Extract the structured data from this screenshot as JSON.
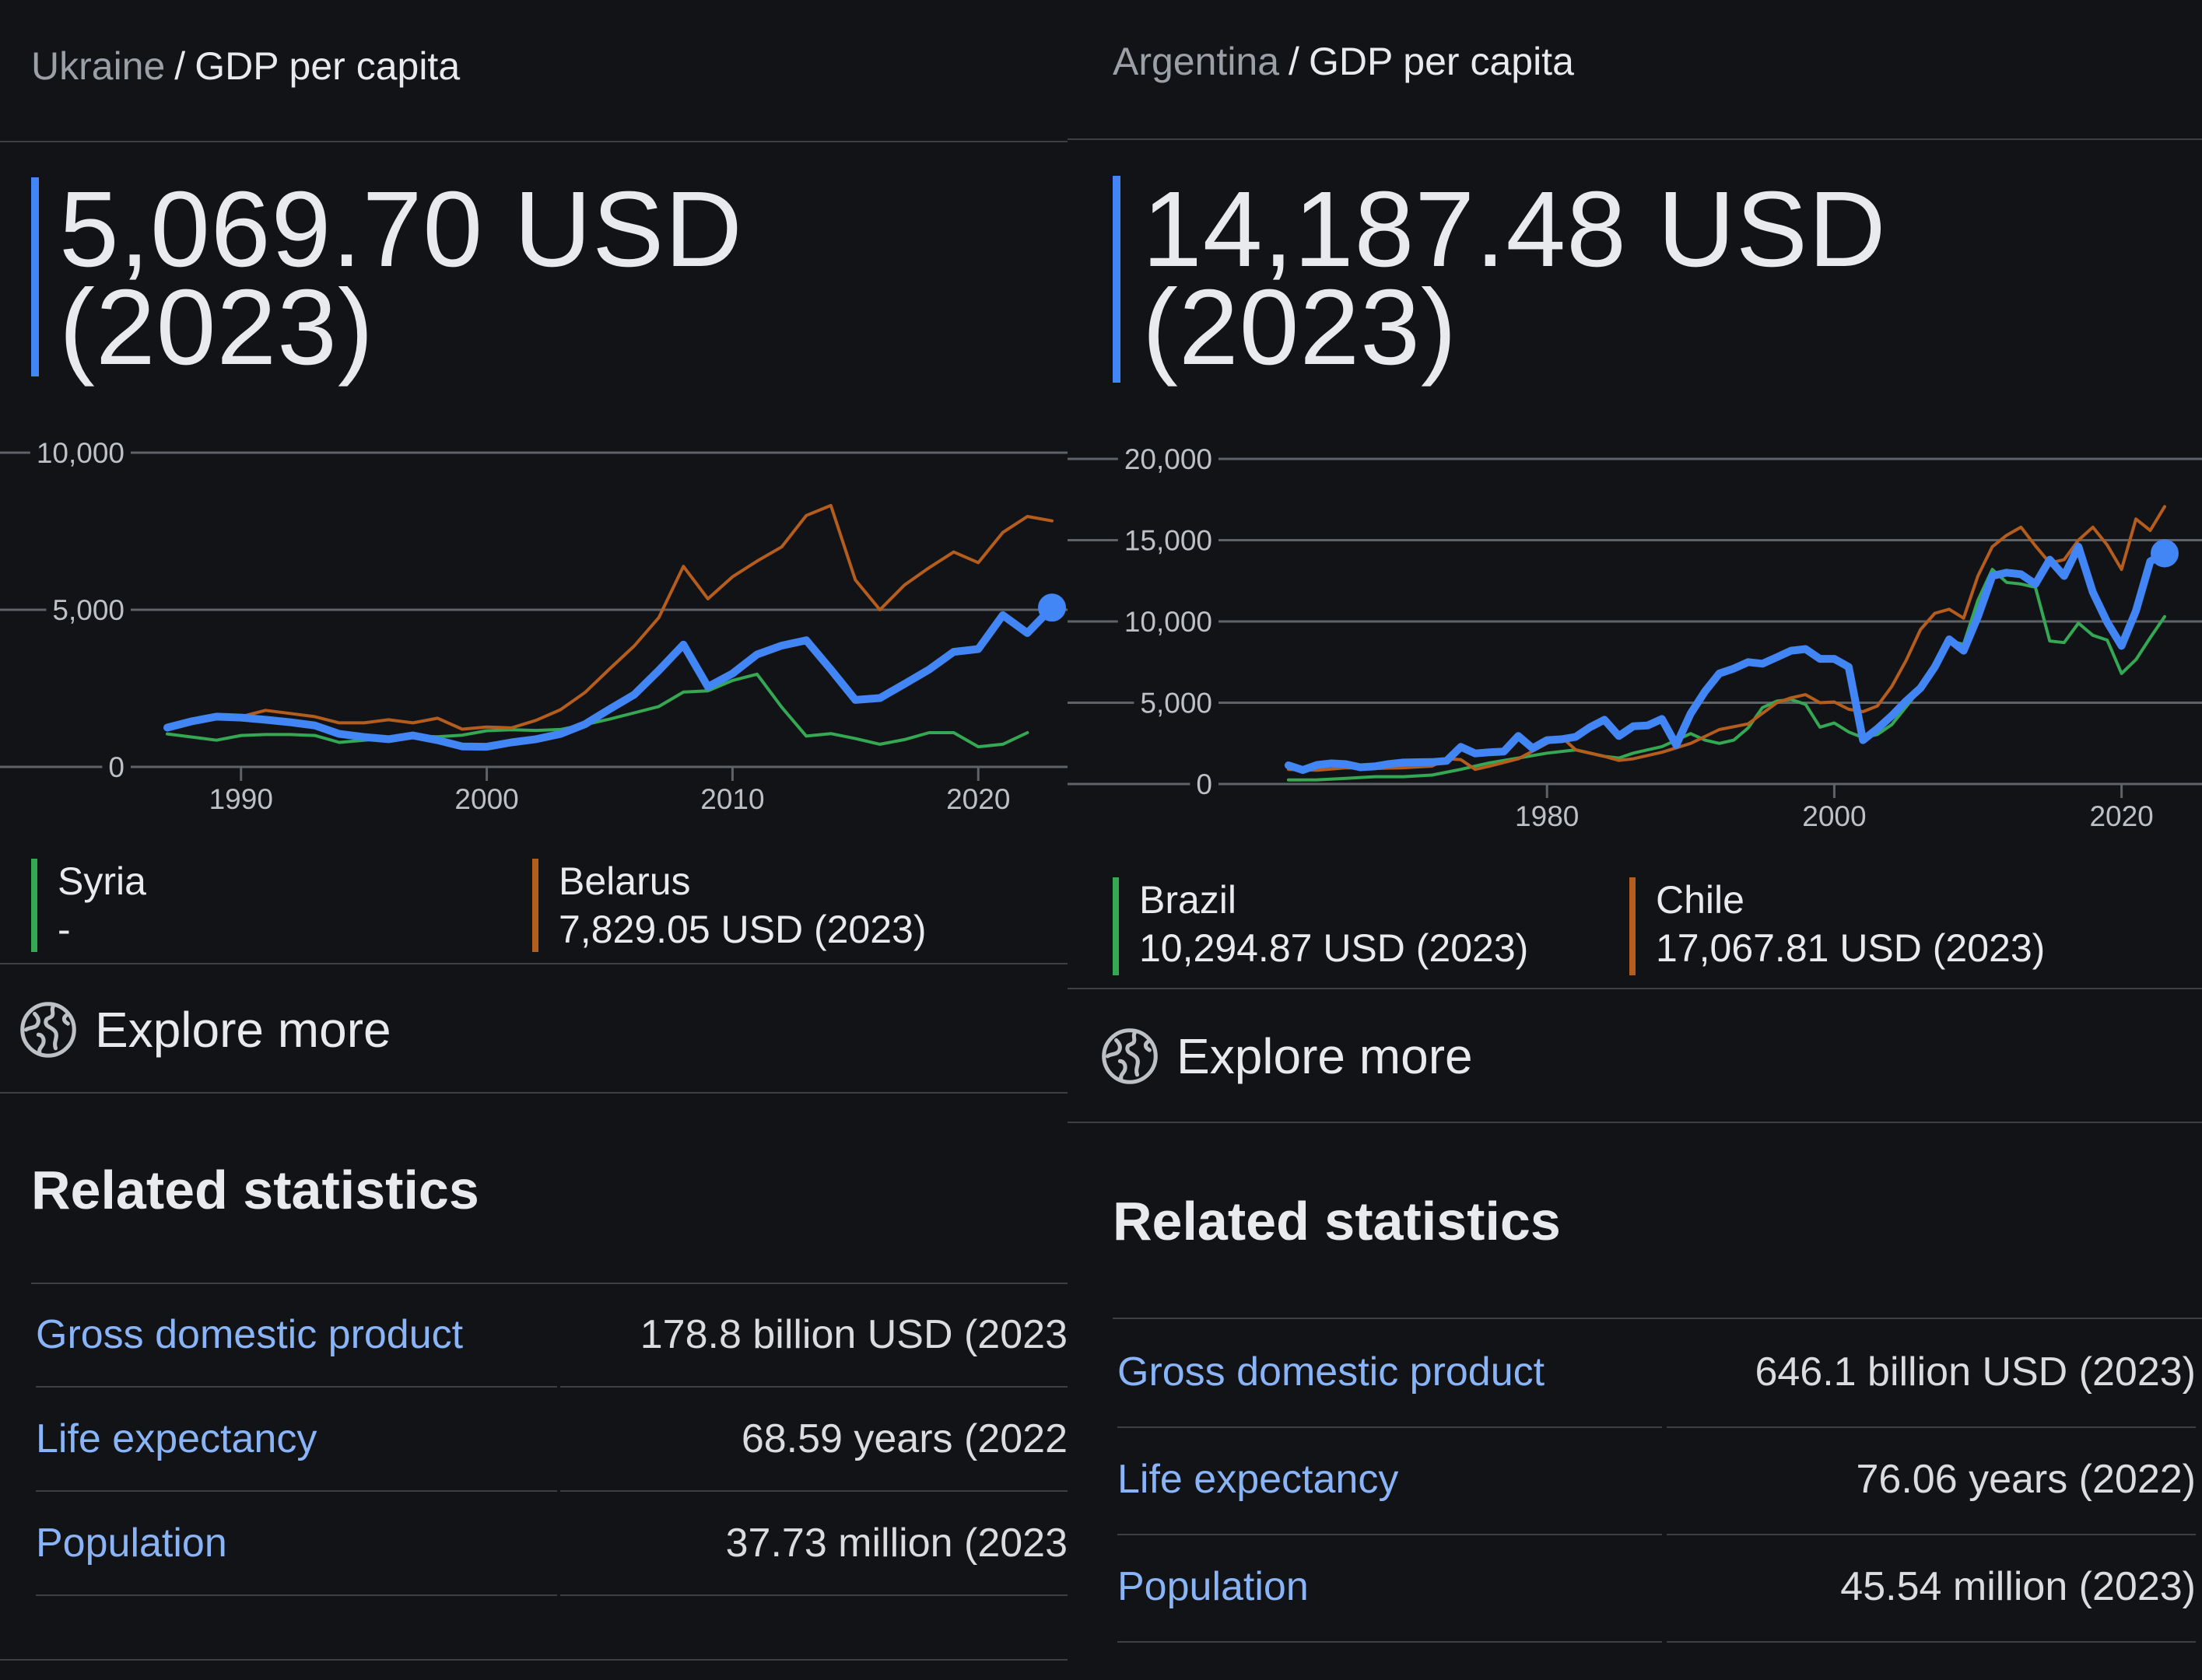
{
  "panels": [
    {
      "breadcrumb": {
        "country": "Ukraine",
        "separator": "/",
        "metric": "GDP per capita"
      },
      "headline": {
        "line1": "5,069.70 USD",
        "line2": "(2023)"
      },
      "legend": [
        {
          "name": "Syria",
          "value": "-",
          "color": "#34a853"
        },
        {
          "name": "Belarus",
          "value": "7,829.05 USD (2023)",
          "color": "#b45d1c"
        }
      ],
      "explore": {
        "label": "Explore more",
        "icon": "globe-icon"
      },
      "related": {
        "heading": "Related statistics",
        "rows": [
          {
            "name": "Gross domestic product",
            "value": "178.8 billion USD (2023"
          },
          {
            "name": "Life expectancy",
            "value": "68.59 years (2022"
          },
          {
            "name": "Population",
            "value": "37.73 million (2023"
          }
        ]
      }
    },
    {
      "breadcrumb": {
        "country": "Argentina",
        "separator": "/",
        "metric": "GDP per capita"
      },
      "headline": {
        "line1": "14,187.48 USD",
        "line2": "(2023)"
      },
      "legend": [
        {
          "name": "Brazil",
          "value": "10,294.87 USD (2023)",
          "color": "#34a853"
        },
        {
          "name": "Chile",
          "value": "17,067.81 USD (2023)",
          "color": "#b45d1c"
        }
      ],
      "explore": {
        "label": "Explore more",
        "icon": "globe-icon"
      },
      "related": {
        "heading": "Related statistics",
        "rows": [
          {
            "name": "Gross domestic product",
            "value": "646.1 billion USD (2023)"
          },
          {
            "name": "Life expectancy",
            "value": "76.06 years (2022)"
          },
          {
            "name": "Population",
            "value": "45.54 million (2023)"
          }
        ]
      }
    }
  ],
  "chart_data": [
    {
      "type": "line",
      "title": "",
      "xlabel": "",
      "ylabel": "",
      "xlim": [
        1987,
        2023
      ],
      "ylim": [
        0,
        10000
      ],
      "y_ticks": [
        0,
        5000,
        10000
      ],
      "y_tick_labels": [
        "0",
        "5,000",
        "10,000"
      ],
      "x_ticks": [
        1990,
        2000,
        2010,
        2020
      ],
      "x_tick_labels": [
        "1990",
        "2000",
        "2010",
        "2020"
      ],
      "grid": true,
      "legend_position": "bottom",
      "end_marker": true,
      "series": [
        {
          "name": "Ukraine",
          "color": "#4285f4",
          "emphasis": true,
          "x": [
            1987,
            1988,
            1989,
            1990,
            1991,
            1992,
            1993,
            1994,
            1995,
            1996,
            1997,
            1998,
            1999,
            2000,
            2001,
            2002,
            2003,
            2004,
            2005,
            2006,
            2007,
            2008,
            2009,
            2010,
            2011,
            2012,
            2013,
            2014,
            2015,
            2016,
            2017,
            2018,
            2019,
            2020,
            2021,
            2022,
            2023
          ],
          "y": [
            1250,
            1450,
            1600,
            1570,
            1500,
            1420,
            1320,
            1050,
            950,
            880,
            1000,
            850,
            650,
            640,
            780,
            880,
            1050,
            1360,
            1840,
            2300,
            3070,
            3890,
            2550,
            2970,
            3580,
            3860,
            4030,
            3100,
            2130,
            2190,
            2640,
            3100,
            3660,
            3750,
            4830,
            4260,
            5069.7
          ]
        },
        {
          "name": "Syria",
          "color": "#34a853",
          "x": [
            1987,
            1988,
            1989,
            1990,
            1991,
            1992,
            1993,
            1994,
            1995,
            1996,
            1997,
            1998,
            1999,
            2000,
            2001,
            2002,
            2003,
            2004,
            2005,
            2006,
            2007,
            2008,
            2009,
            2010,
            2011,
            2012,
            2013,
            2014,
            2015,
            2016,
            2017,
            2018,
            2019,
            2020,
            2021,
            2022
          ],
          "y": [
            1050,
            950,
            850,
            1000,
            1030,
            1030,
            1000,
            780,
            850,
            920,
            980,
            960,
            1010,
            1150,
            1180,
            1160,
            1190,
            1350,
            1520,
            1720,
            1920,
            2380,
            2420,
            2750,
            2950,
            1900,
            980,
            1060,
            900,
            720,
            870,
            1090,
            1090,
            640,
            720,
            1090
          ]
        },
        {
          "name": "Belarus",
          "color": "#b45d1c",
          "x": [
            1987,
            1988,
            1989,
            1990,
            1991,
            1992,
            1993,
            1994,
            1995,
            1996,
            1997,
            1998,
            1999,
            2000,
            2001,
            2002,
            2003,
            2004,
            2005,
            2006,
            2007,
            2008,
            2009,
            2010,
            2011,
            2012,
            2013,
            2014,
            2015,
            2016,
            2017,
            2018,
            2019,
            2020,
            2021,
            2022,
            2023
          ],
          "y": [
            null,
            null,
            null,
            1600,
            1800,
            1700,
            1600,
            1400,
            1400,
            1500,
            1400,
            1550,
            1200,
            1270,
            1240,
            1480,
            1820,
            2370,
            3120,
            3850,
            4750,
            6380,
            5350,
            6050,
            6550,
            7000,
            8000,
            8320,
            5950,
            5000,
            5790,
            6340,
            6840,
            6500,
            7460,
            7970,
            7829.05
          ]
        }
      ]
    },
    {
      "type": "line",
      "title": "",
      "xlabel": "",
      "ylabel": "",
      "xlim": [
        1960,
        2023
      ],
      "ylim": [
        0,
        20000
      ],
      "y_ticks": [
        0,
        5000,
        10000,
        15000,
        20000
      ],
      "y_tick_labels": [
        "0",
        "5,000",
        "10,000",
        "15,000",
        "20,000"
      ],
      "x_ticks": [
        1980,
        2000,
        2020
      ],
      "x_tick_labels": [
        "1980",
        "2000",
        "2020"
      ],
      "grid": true,
      "legend_position": "bottom",
      "end_marker": true,
      "series": [
        {
          "name": "Argentina",
          "color": "#4285f4",
          "emphasis": true,
          "x": [
            1962,
            1963,
            1964,
            1965,
            1966,
            1967,
            1968,
            1969,
            1970,
            1971,
            1972,
            1973,
            1974,
            1975,
            1976,
            1977,
            1978,
            1979,
            1980,
            1981,
            1982,
            1983,
            1984,
            1985,
            1986,
            1987,
            1988,
            1989,
            1990,
            1991,
            1992,
            1993,
            1994,
            1995,
            1996,
            1997,
            1998,
            1999,
            2000,
            2001,
            2002,
            2003,
            2004,
            2005,
            2006,
            2007,
            2008,
            2009,
            2010,
            2011,
            2012,
            2013,
            2014,
            2015,
            2016,
            2017,
            2018,
            2019,
            2020,
            2021,
            2022,
            2023
          ],
          "y": [
            1150,
            860,
            1170,
            1270,
            1220,
            1030,
            1080,
            1230,
            1320,
            1340,
            1350,
            1420,
            2280,
            1880,
            1950,
            2000,
            2950,
            2200,
            2700,
            2750,
            2900,
            3500,
            3950,
            2950,
            3550,
            3600,
            4000,
            2400,
            4330,
            5700,
            6800,
            7100,
            7500,
            7400,
            7800,
            8200,
            8300,
            7700,
            7700,
            7200,
            2700,
            3400,
            4200,
            5100,
            5900,
            7200,
            8900,
            8200,
            10300,
            12800,
            13000,
            12900,
            12300,
            13800,
            12800,
            14600,
            11800,
            9950,
            8500,
            10650,
            13700,
            14187.48
          ]
        },
        {
          "name": "Brazil",
          "color": "#34a853",
          "x": [
            1962,
            1964,
            1966,
            1968,
            1970,
            1972,
            1974,
            1976,
            1978,
            1980,
            1982,
            1984,
            1985,
            1986,
            1988,
            1990,
            1991,
            1992,
            1993,
            1994,
            1995,
            1996,
            1997,
            1998,
            1999,
            2000,
            2001,
            2002,
            2003,
            2004,
            2005,
            2006,
            2007,
            2008,
            2009,
            2010,
            2011,
            2012,
            2013,
            2014,
            2015,
            2016,
            2017,
            2018,
            2019,
            2020,
            2021,
            2022,
            2023
          ],
          "y": [
            250,
            260,
            350,
            450,
            450,
            550,
            900,
            1300,
            1600,
            1900,
            2100,
            1700,
            1600,
            1900,
            2300,
            3100,
            2700,
            2500,
            2700,
            3450,
            4700,
            5100,
            5200,
            4900,
            3500,
            3750,
            3200,
            2850,
            3050,
            3650,
            4750,
            5850,
            7350,
            8800,
            8600,
            11300,
            13200,
            12400,
            12300,
            12100,
            8800,
            8700,
            9900,
            9150,
            8850,
            6800,
            7650,
            9000,
            10294.87
          ]
        },
        {
          "name": "Chile",
          "color": "#b45d1c",
          "x": [
            1962,
            1964,
            1966,
            1968,
            1970,
            1972,
            1973,
            1974,
            1975,
            1976,
            1978,
            1980,
            1981,
            1982,
            1984,
            1985,
            1986,
            1988,
            1990,
            1992,
            1994,
            1996,
            1997,
            1998,
            1999,
            2000,
            2001,
            2002,
            2003,
            2004,
            2005,
            2006,
            2007,
            2008,
            2009,
            2010,
            2011,
            2012,
            2013,
            2014,
            2015,
            2016,
            2017,
            2018,
            2019,
            2020,
            2021,
            2022,
            2023
          ],
          "y": [
            900,
            850,
            1000,
            950,
            1000,
            1100,
            1550,
            1500,
            900,
            1100,
            1550,
            2500,
            2900,
            2100,
            1700,
            1450,
            1550,
            1950,
            2500,
            3350,
            3700,
            5000,
            5300,
            5500,
            5000,
            5050,
            4600,
            4450,
            4800,
            6000,
            7600,
            9500,
            10500,
            10750,
            10200,
            12800,
            14600,
            15300,
            15800,
            14650,
            13600,
            13800,
            15000,
            15800,
            14700,
            13200,
            16300,
            15600,
            17067.81
          ]
        }
      ]
    }
  ]
}
